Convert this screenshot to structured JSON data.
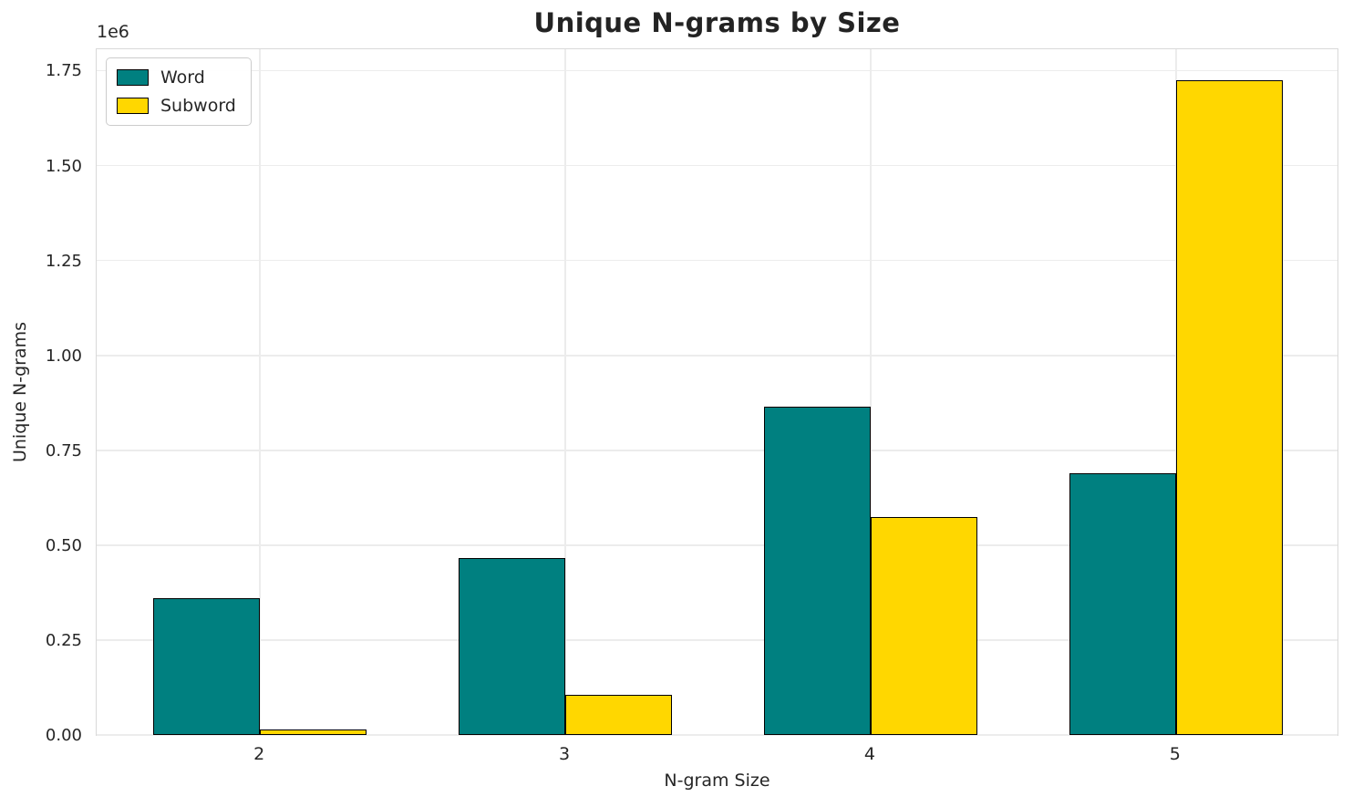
{
  "chart_data": {
    "type": "bar",
    "title": "Unique N-grams by Size",
    "xlabel": "N-gram Size",
    "ylabel": "Unique N-grams",
    "y_offset_label": "1e6",
    "categories": [
      "2",
      "3",
      "4",
      "5"
    ],
    "series": [
      {
        "name": "Word",
        "color": "#008080",
        "values": [
          360000,
          465000,
          865000,
          690000
        ]
      },
      {
        "name": "Subword",
        "color": "#FFD700",
        "values": [
          15000,
          105000,
          575000,
          1725000
        ]
      }
    ],
    "bar_edge_color": "#000000",
    "bar_width": 0.35,
    "xlim": [
      -0.535,
      3.535
    ],
    "ylim": [
      0,
      1811250
    ],
    "yticks": [
      0,
      250000,
      500000,
      750000,
      1000000,
      1250000,
      1500000,
      1750000
    ],
    "ytick_labels": [
      "0.00",
      "0.25",
      "0.50",
      "0.75",
      "1.00",
      "1.25",
      "1.50",
      "1.75"
    ],
    "grid": true,
    "legend_position": "upper left"
  },
  "colors": {
    "background": "#ffffff",
    "grid": "#ececec",
    "spine": "#d9d9d9",
    "text": "#262626",
    "title": "#232323"
  }
}
